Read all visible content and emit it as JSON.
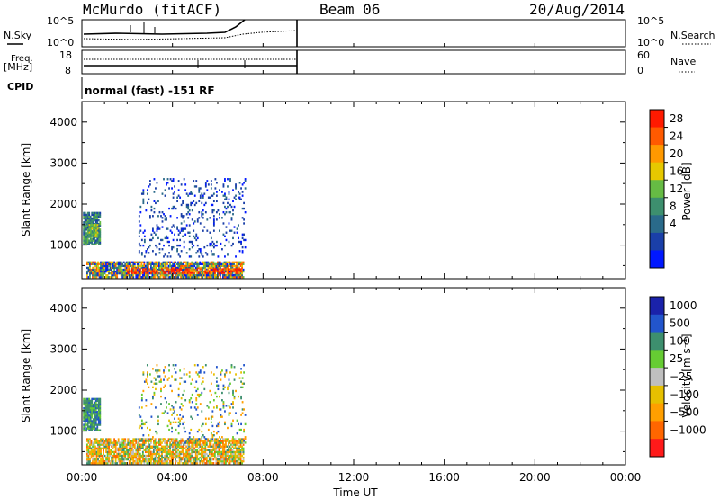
{
  "header": {
    "station": "McMurdo (fitACF)",
    "beam": "Beam 06",
    "date": "20/Aug/2014"
  },
  "status_panels": {
    "nsky_label": "N.Sky",
    "nsky_ticks": [
      "10^5",
      "10^0"
    ],
    "nsearch_label": "N.Search",
    "nsearch_ticks": [
      "10^5",
      "10^0"
    ],
    "freq_label": "Freq.",
    "freq_unit": "[MHz]",
    "freq_ticks": [
      "18",
      "8"
    ],
    "nave_label": "Nave",
    "nave_ticks": [
      "60",
      "0"
    ],
    "cpid_label": "CPID",
    "cpid_text": "normal (fast) -151 RF"
  },
  "x_axis": {
    "label": "Time UT",
    "ticks": [
      "00:00",
      "04:00",
      "08:00",
      "12:00",
      "16:00",
      "20:00",
      "00:00"
    ]
  },
  "colors": {
    "power": [
      "#0018ff",
      "#1a3fa8",
      "#2a6a8a",
      "#3d8f6e",
      "#66bb44",
      "#e6c800",
      "#ff9900",
      "#ff5a00",
      "#ff1a00"
    ],
    "velocity": [
      "#1a22aa",
      "#2255cc",
      "#3d8f6e",
      "#66cc33",
      "#bfbfbf",
      "#e6c000",
      "#ff9f00",
      "#ff6600",
      "#ff1a1a"
    ]
  },
  "chart_data": [
    {
      "type": "heatmap",
      "title": "Power",
      "ylabel": "Slant Range [km]",
      "xlabel": "Time UT",
      "ylim": [
        180,
        4500
      ],
      "y_ticks": [
        1000,
        2000,
        3000,
        4000
      ],
      "x_ticks": [
        "00:00",
        "04:00",
        "08:00",
        "12:00",
        "16:00",
        "20:00",
        "00:00"
      ],
      "colorbar": {
        "label": "Power [dB]",
        "ticks": [
          "28",
          "24",
          "20",
          "16",
          "12",
          "8",
          "4"
        ],
        "range": [
          0,
          30
        ]
      },
      "data_extent_hours": [
        0,
        7.2
      ],
      "regions": [
        {
          "t0": 0.05,
          "t1": 0.8,
          "r0": 1000,
          "r1": 1800,
          "level": "green-blue",
          "density": 0.9
        },
        {
          "t0": 0.3,
          "t1": 0.7,
          "r0": 1200,
          "r1": 1500,
          "level": "yellow-green",
          "density": 0.8
        },
        {
          "t0": 0.2,
          "t1": 7.1,
          "r0": 200,
          "r1": 600,
          "level": "mixed",
          "density": 0.85
        },
        {
          "t0": 2.0,
          "t1": 7.0,
          "r0": 300,
          "r1": 400,
          "level": "red-orange",
          "density": 0.6
        },
        {
          "t0": 2.5,
          "t1": 7.2,
          "r0": 700,
          "r1": 2600,
          "level": "blue",
          "density": 0.12
        }
      ],
      "annotations": [
        "28",
        "24",
        "20",
        "16",
        "12",
        "8",
        "4"
      ]
    },
    {
      "type": "heatmap",
      "title": "Velocity",
      "ylabel": "Slant Range [km]",
      "xlabel": "Time UT",
      "ylim": [
        180,
        4500
      ],
      "y_ticks": [
        1000,
        2000,
        3000,
        4000
      ],
      "x_ticks": [
        "00:00",
        "04:00",
        "08:00",
        "12:00",
        "16:00",
        "20:00",
        "00:00"
      ],
      "colorbar": {
        "label": "Velocity [m s⁻¹]",
        "ticks": [
          "1000",
          "500",
          "100",
          "25",
          "−25",
          "−100",
          "−500",
          "−1000"
        ],
        "range": [
          -1000,
          1000
        ]
      },
      "data_extent_hours": [
        0,
        7.2
      ],
      "regions": [
        {
          "t0": 0.05,
          "t1": 0.8,
          "r0": 1000,
          "r1": 1800,
          "level": "teal",
          "density": 0.9
        },
        {
          "t0": 0.2,
          "t1": 7.1,
          "r0": 200,
          "r1": 800,
          "level": "mixed-orange-teal",
          "density": 0.8
        },
        {
          "t0": 2.5,
          "t1": 7.2,
          "r0": 700,
          "r1": 2600,
          "level": "scattered",
          "density": 0.1
        }
      ]
    }
  ]
}
